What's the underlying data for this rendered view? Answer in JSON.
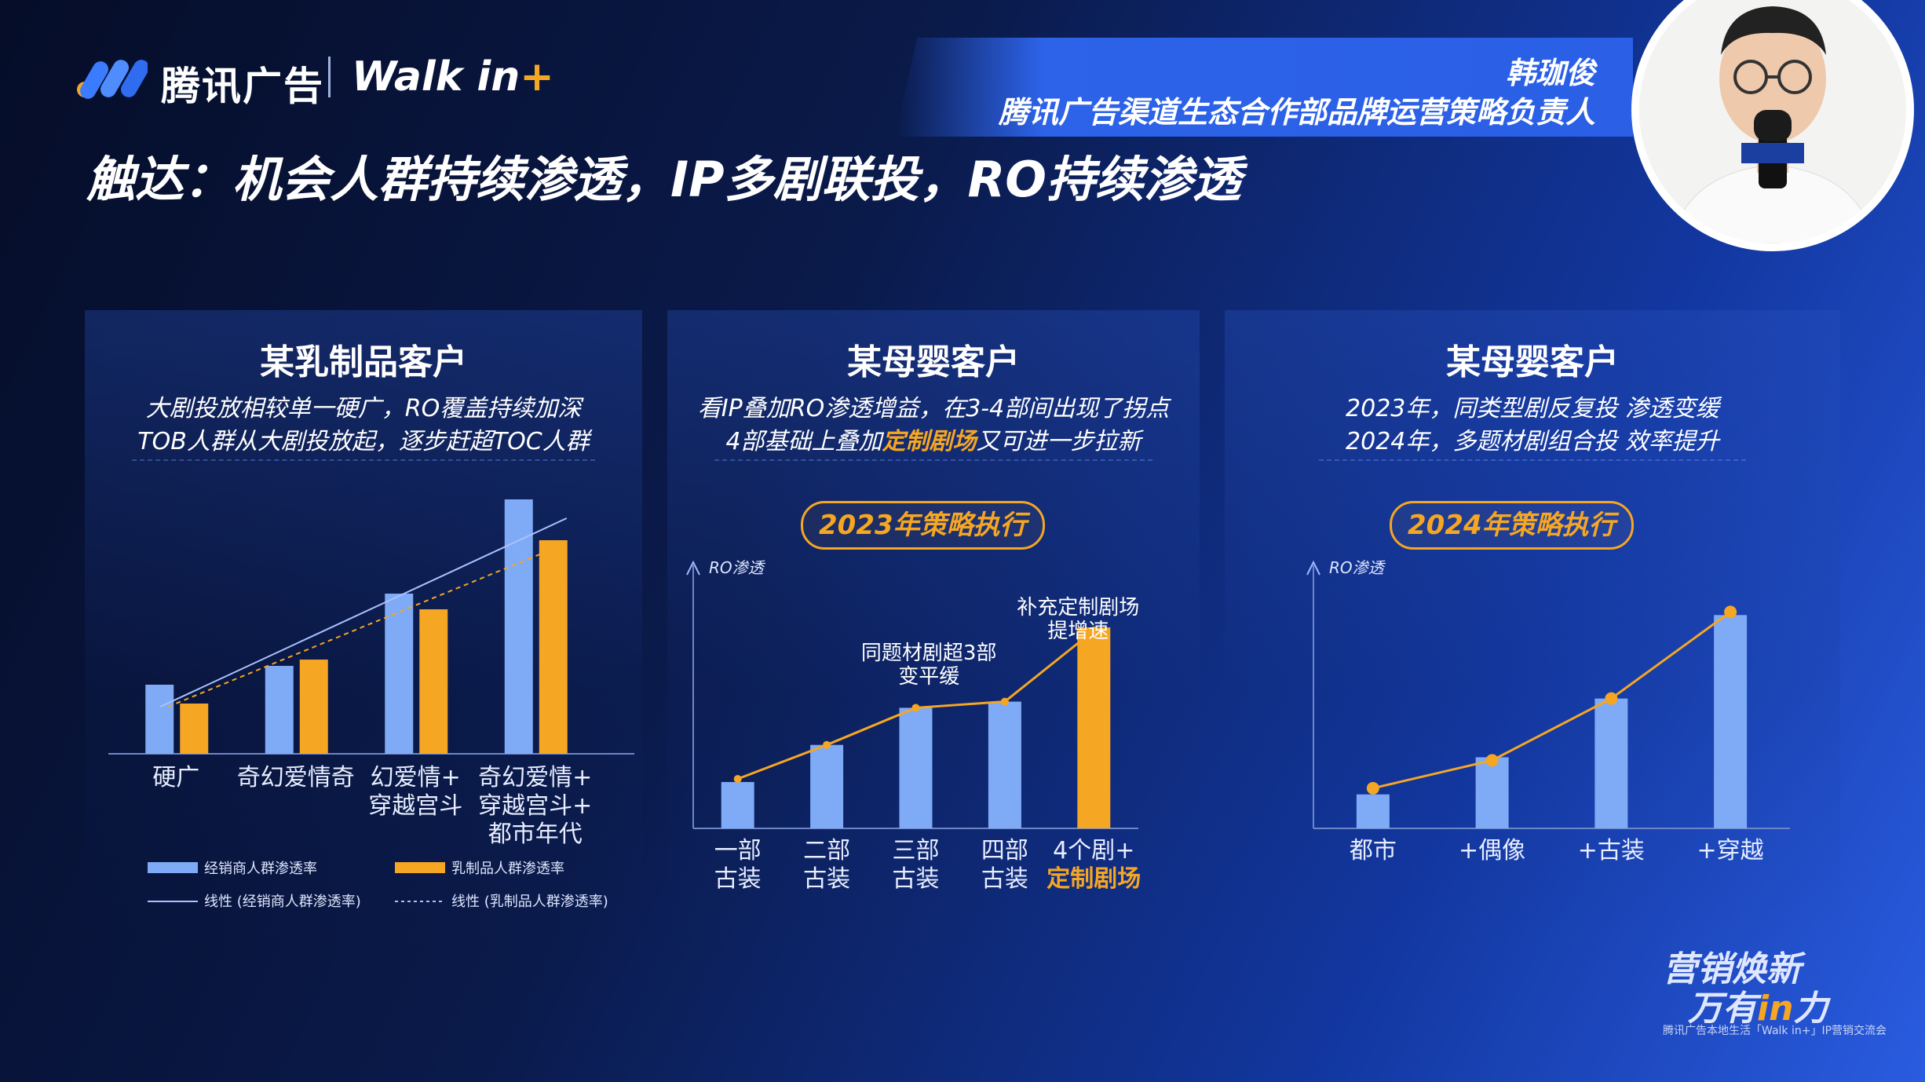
{
  "header": {
    "brand": "腾讯广告",
    "event_logo_text": "Walk in",
    "event_logo_plus": "+",
    "speaker_name": "韩珈俊",
    "speaker_title": "腾讯广告渠道生态合作部品牌运营策略负责人",
    "headline": "触达：机会人群持续渗透，IP多剧联投，RO持续渗透"
  },
  "panels": [
    {
      "title": "某乳制品客户",
      "line1": "大剧投放相较单一硬广，RO覆盖持续加深",
      "line2": "TOB人群从大剧投放起，逐步赶超TOC人群"
    },
    {
      "title": "某母婴客户",
      "line1": "看IP叠加RO渗透增益，在3-4部间出现了拐点",
      "line2_pre": "4部基础上叠加",
      "line2_hl": "定制剧场",
      "line2_post": "又可进一步拉新",
      "badge": "2023年策略执行"
    },
    {
      "title": "某母婴客户",
      "line1": "2023年，同类型剧反复投 渗透变缓",
      "line2": "2024年，多题材剧组合投 效率提升",
      "badge": "2024年策略执行"
    }
  ],
  "colors": {
    "blue": "#7faaf5",
    "orange": "#f5a623",
    "accent": "#2d63e8"
  },
  "chart_data": [
    {
      "type": "bar",
      "categories": [
        [
          "硬广"
        ],
        [
          "奇幻爱情奇"
        ],
        [
          "幻爱情+",
          "穿越宫斗"
        ],
        [
          "奇幻爱情+",
          "穿越宫斗+",
          "都市年代"
        ]
      ],
      "series": [
        {
          "name": "经销商人群渗透率",
          "values": [
            22,
            28,
            51,
            81
          ]
        },
        {
          "name": "乳制品人群渗透率",
          "values": [
            16,
            30,
            46,
            68
          ]
        }
      ],
      "trendlines": [
        {
          "name": "线性 (经销商人群渗透率)",
          "from": 15,
          "to": 75
        },
        {
          "name": "线性 (乳制品人群渗透率)",
          "from": 15,
          "to": 67
        }
      ],
      "ylim": [
        0,
        90
      ],
      "grid": false,
      "legend": "bottom"
    },
    {
      "type": "bar",
      "ylabel": "RO渗透",
      "categories": [
        [
          "一部",
          "古装"
        ],
        [
          "二部",
          "古装"
        ],
        [
          "三部",
          "古装"
        ],
        [
          "四部",
          "古装"
        ],
        [
          "4个剧+",
          "定制剧场"
        ]
      ],
      "highlight_index": 4,
      "values": [
        15,
        27,
        39,
        41,
        65
      ],
      "line_values": [
        16,
        27,
        39,
        41,
        64
      ],
      "annotations": [
        {
          "at": 2.5,
          "lines": [
            "同题材剧超3部",
            "变平缓"
          ]
        },
        {
          "at": 4,
          "lines": [
            "补充定制剧场",
            "提增速"
          ]
        }
      ],
      "ylim": [
        0,
        80
      ]
    },
    {
      "type": "bar",
      "ylabel": "RO渗透",
      "categories": [
        [
          "都市"
        ],
        [
          "+偶像"
        ],
        [
          "+古装"
        ],
        [
          "+穿越"
        ]
      ],
      "values": [
        11,
        23,
        42,
        69
      ],
      "line_values": [
        13,
        22,
        42,
        70
      ],
      "ylim": [
        0,
        80
      ]
    }
  ],
  "footer": {
    "slogan1": "营销焕新",
    "slogan2_pre": "万有",
    "slogan2_in": "in",
    "slogan2_post": "力",
    "subline": "腾讯广告本地生活「Walk in+」IP营销交流会"
  }
}
